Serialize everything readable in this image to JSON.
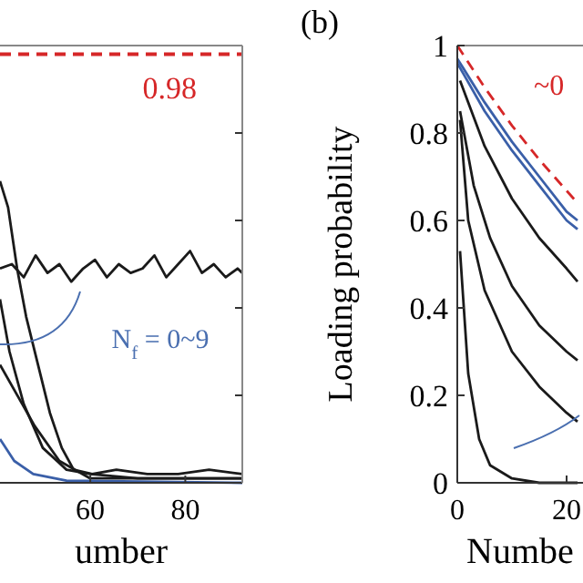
{
  "chart_data": [
    {
      "type": "line",
      "xlim": [
        41,
        92
      ],
      "ylim": [
        0,
        1
      ],
      "xticks": [
        60,
        80
      ],
      "yticks": [
        {
          "value": 0.2,
          "label": null
        },
        {
          "value": 0.4,
          "label": null
        },
        {
          "value": 0.6,
          "label": null
        },
        {
          "value": 0.8,
          "label": null
        }
      ],
      "tick_labels": "x",
      "xlabel": "umber",
      "grid": false,
      "line_style": "solid",
      "marker": "none",
      "series": [
        {
          "color": "#1a1a1a",
          "x": [
            41,
            43.5,
            46,
            48.5,
            51,
            53.5,
            56,
            58.5,
            61,
            63.5,
            66,
            68.5,
            71,
            73.5,
            76,
            78.5,
            81,
            83.5,
            86,
            88.5,
            91,
            92
          ],
          "values": [
            0.49,
            0.5,
            0.47,
            0.52,
            0.48,
            0.5,
            0.46,
            0.49,
            0.51,
            0.47,
            0.5,
            0.48,
            0.49,
            0.52,
            0.47,
            0.5,
            0.53,
            0.48,
            0.5,
            0.47,
            0.49,
            0.48
          ]
        },
        {
          "color": "#1a1a1a",
          "x": [
            41,
            42.7,
            44.6,
            46.5,
            49,
            51.5,
            54,
            56.5,
            60.4,
            65.5,
            72,
            78.5,
            85,
            92
          ],
          "values": [
            0.69,
            0.63,
            0.49,
            0.38,
            0.27,
            0.16,
            0.08,
            0.03,
            0.02,
            0.03,
            0.02,
            0.02,
            0.03,
            0.02
          ]
        },
        {
          "color": "#1a1a1a",
          "x": [
            41,
            43,
            46,
            50,
            55,
            60,
            70,
            80,
            92
          ],
          "values": [
            0.42,
            0.3,
            0.18,
            0.08,
            0.03,
            0.02,
            0.01,
            0.01,
            0.01
          ]
        },
        {
          "color": "#1a1a1a",
          "x": [
            41,
            48.3,
            53.5,
            60,
            92
          ],
          "values": [
            0.27,
            0.13,
            0.05,
            0.01,
            0.01
          ]
        },
        {
          "color": "#3a5fa8",
          "x": [
            41,
            44,
            48,
            55,
            92
          ],
          "values": [
            0.1,
            0.05,
            0.02,
            0.005,
            0
          ]
        }
      ],
      "ref_lines": [
        {
          "axis": "y",
          "value": 0.98,
          "label": "0.98",
          "color": "#d62728",
          "line_style": "dashed"
        }
      ],
      "annotations": [
        "N$_{f}$ = 0~9"
      ]
    },
    {
      "type": "line",
      "xlim": [
        0,
        23
      ],
      "ylim": [
        0,
        1
      ],
      "xticks": [
        0,
        20
      ],
      "yticks": [
        0,
        0.2,
        0.4,
        0.6,
        0.8,
        1
      ],
      "xlabel": "Numbe",
      "ylabel": "Loading probability",
      "grid": false,
      "line_style": "solid",
      "marker": "none",
      "series": [
        {
          "color": "#d62728",
          "line_style": "dashed",
          "x": [
            0,
            5,
            10,
            15,
            20,
            22
          ],
          "values": [
            1,
            0.904,
            0.817,
            0.739,
            0.668,
            0.64
          ]
        },
        {
          "color": "#3a5fa8",
          "x": [
            0,
            5,
            10,
            15,
            20,
            22
          ],
          "values": [
            0.97,
            0.87,
            0.78,
            0.7,
            0.62,
            0.6
          ]
        },
        {
          "color": "#3a5fa8",
          "x": [
            0,
            5,
            10,
            15,
            20,
            22
          ],
          "values": [
            0.96,
            0.85,
            0.76,
            0.68,
            0.6,
            0.58
          ]
        },
        {
          "color": "#1a1a1a",
          "x": [
            0.5,
            5,
            10,
            15,
            20,
            22
          ],
          "values": [
            0.92,
            0.77,
            0.65,
            0.56,
            0.49,
            0.46
          ]
        },
        {
          "color": "#1a1a1a",
          "x": [
            0.5,
            3,
            6,
            10,
            15,
            20,
            22
          ],
          "values": [
            0.85,
            0.68,
            0.56,
            0.45,
            0.36,
            0.3,
            0.28
          ]
        },
        {
          "color": "#1a1a1a",
          "x": [
            0.5,
            2,
            5,
            10,
            15,
            20,
            22
          ],
          "values": [
            0.83,
            0.6,
            0.44,
            0.3,
            0.22,
            0.16,
            0.14
          ]
        },
        {
          "color": "#1a1a1a",
          "x": [
            0.5,
            2,
            4,
            6,
            10,
            15,
            22
          ],
          "values": [
            0.53,
            0.25,
            0.1,
            0.04,
            0.01,
            0,
            0
          ]
        }
      ],
      "annotations": [
        "(b)",
        "~0"
      ]
    }
  ]
}
